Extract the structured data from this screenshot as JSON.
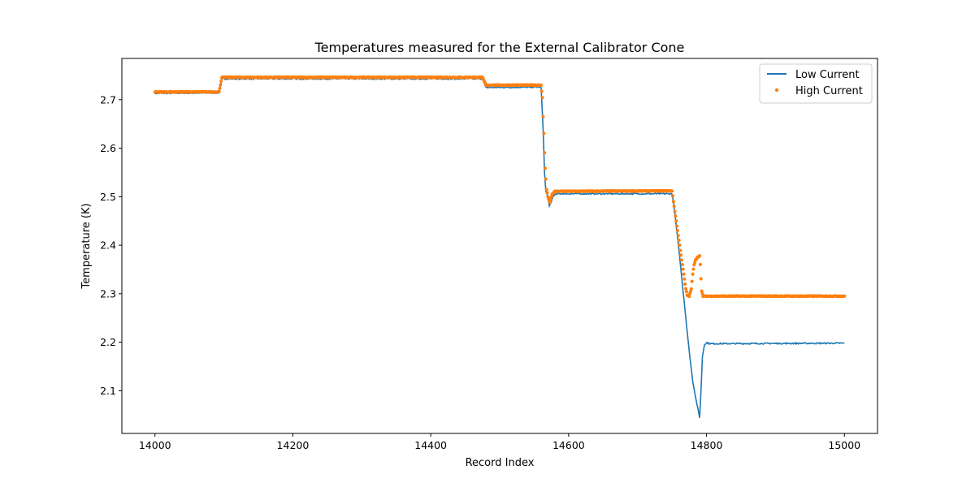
{
  "chart_data": {
    "type": "line",
    "title": "Temperatures measured for the External Calibrator Cone",
    "xlabel": "Record Index",
    "ylabel": "Temperature (K)",
    "xlim": [
      13952,
      15048
    ],
    "ylim": [
      2.012,
      2.785
    ],
    "xticks": [
      14000,
      14200,
      14400,
      14600,
      14800,
      15000
    ],
    "yticks": [
      2.1,
      2.2,
      2.3,
      2.4,
      2.5,
      2.6,
      2.7
    ],
    "grid": false,
    "legend_position": "top-right",
    "series": [
      {
        "name": "Low Current",
        "style": "line",
        "color": "#1f77b4",
        "points": [
          [
            14000,
            2.713
          ],
          [
            14093,
            2.714
          ],
          [
            14097,
            2.743
          ],
          [
            14475,
            2.743
          ],
          [
            14480,
            2.725
          ],
          [
            14560,
            2.726
          ],
          [
            14563,
            2.64
          ],
          [
            14565,
            2.55
          ],
          [
            14567,
            2.51
          ],
          [
            14569,
            2.505
          ],
          [
            14572,
            2.48
          ],
          [
            14575,
            2.49
          ],
          [
            14578,
            2.503
          ],
          [
            14585,
            2.506
          ],
          [
            14750,
            2.506
          ],
          [
            14753,
            2.48
          ],
          [
            14756,
            2.44
          ],
          [
            14760,
            2.39
          ],
          [
            14765,
            2.32
          ],
          [
            14770,
            2.25
          ],
          [
            14775,
            2.18
          ],
          [
            14780,
            2.12
          ],
          [
            14785,
            2.08
          ],
          [
            14790,
            2.045
          ],
          [
            14792,
            2.1
          ],
          [
            14794,
            2.17
          ],
          [
            14797,
            2.195
          ],
          [
            14800,
            2.199
          ],
          [
            14805,
            2.197
          ],
          [
            15000,
            2.198
          ]
        ]
      },
      {
        "name": "High Current",
        "style": "scatter",
        "color": "#ff7f0e",
        "points": [
          [
            14000,
            2.716
          ],
          [
            14093,
            2.716
          ],
          [
            14097,
            2.746
          ],
          [
            14475,
            2.746
          ],
          [
            14480,
            2.73
          ],
          [
            14560,
            2.73
          ],
          [
            14562,
            2.705
          ],
          [
            14563,
            2.665
          ],
          [
            14564,
            2.63
          ],
          [
            14565,
            2.59
          ],
          [
            14566,
            2.558
          ],
          [
            14568,
            2.515
          ],
          [
            14570,
            2.5
          ],
          [
            14573,
            2.488
          ],
          [
            14576,
            2.505
          ],
          [
            14580,
            2.511
          ],
          [
            14750,
            2.512
          ],
          [
            14752,
            2.49
          ],
          [
            14754,
            2.47
          ],
          [
            14756,
            2.45
          ],
          [
            14758,
            2.43
          ],
          [
            14760,
            2.41
          ],
          [
            14762,
            2.39
          ],
          [
            14764,
            2.37
          ],
          [
            14766,
            2.35
          ],
          [
            14768,
            2.33
          ],
          [
            14770,
            2.31
          ],
          [
            14772,
            2.297
          ],
          [
            14775,
            2.295
          ],
          [
            14778,
            2.31
          ],
          [
            14780,
            2.34
          ],
          [
            14782,
            2.36
          ],
          [
            14784,
            2.37
          ],
          [
            14787,
            2.375
          ],
          [
            14790,
            2.378
          ],
          [
            14791,
            2.36
          ],
          [
            14792,
            2.33
          ],
          [
            14793,
            2.305
          ],
          [
            14795,
            2.295
          ],
          [
            15000,
            2.295
          ]
        ]
      }
    ]
  }
}
